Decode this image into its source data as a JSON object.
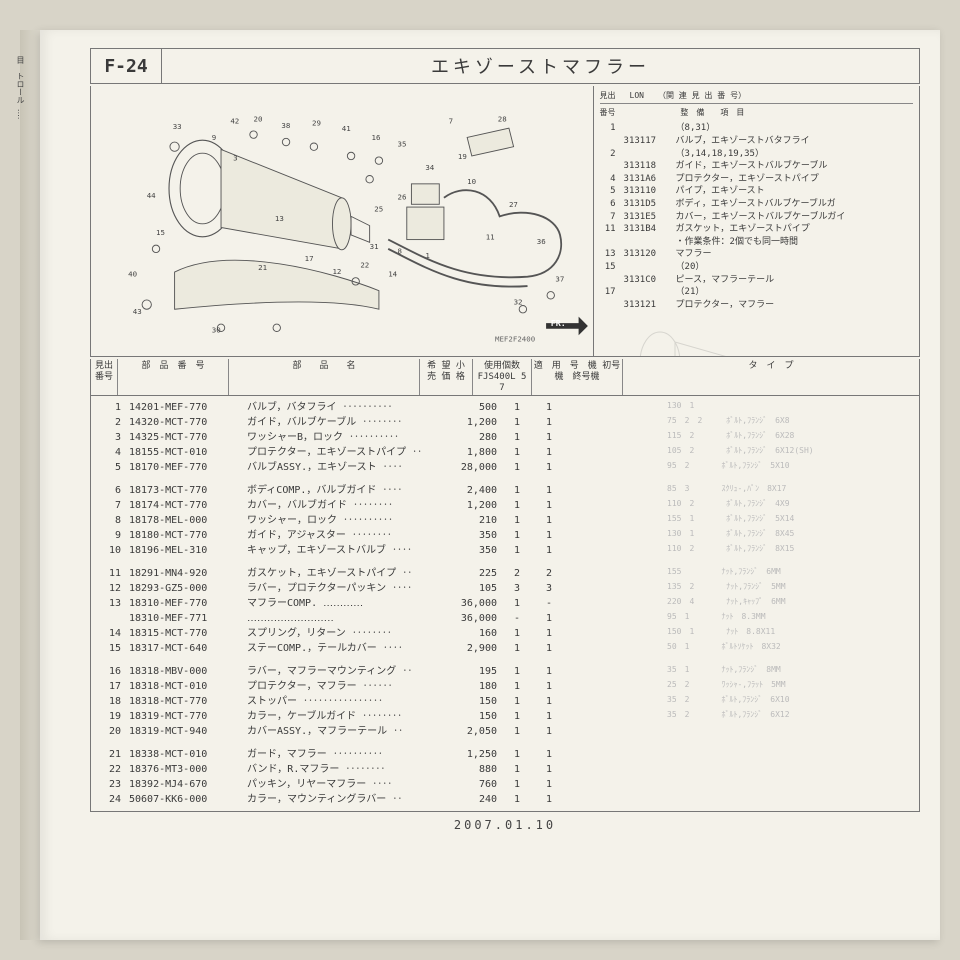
{
  "header": {
    "section": "F-24",
    "title": "エキゾーストマフラー"
  },
  "diagram": {
    "code": "MEF2F2400",
    "fr_label": "FR.",
    "callouts": [
      "1",
      "2",
      "3",
      "4",
      "5",
      "6",
      "7",
      "8",
      "9",
      "10",
      "11",
      "12",
      "13",
      "14",
      "15",
      "16",
      "17",
      "18",
      "19",
      "20",
      "21",
      "22",
      "23",
      "24",
      "25",
      "26",
      "27",
      "28",
      "29",
      "30",
      "31",
      "32",
      "33",
      "34",
      "35",
      "36",
      "37",
      "38",
      "39",
      "40",
      "41",
      "42",
      "43",
      "44"
    ]
  },
  "ref_header": {
    "c1": "見出",
    "c2": "番号",
    "c3": "LON",
    "c4": "（関 連 見 出 番 号）",
    "c5": "整　備　　項　目"
  },
  "refs": [
    {
      "num": "1",
      "lon": "",
      "desc": "（8,31）"
    },
    {
      "num": "",
      "lon": "313117",
      "desc": "バルブ，エキゾーストバタフライ"
    },
    {
      "num": "2",
      "lon": "",
      "desc": "（3,14,18,19,35）"
    },
    {
      "num": "",
      "lon": "313118",
      "desc": "ガイド，エキゾーストバルブケーブル"
    },
    {
      "num": "4",
      "lon": "3131A6",
      "desc": "プロテクター，エキゾーストパイプ"
    },
    {
      "num": "5",
      "lon": "313110",
      "desc": "パイプ，エキゾースト"
    },
    {
      "num": "6",
      "lon": "3131D5",
      "desc": "ボディ，エキゾーストバルブケーブルガ"
    },
    {
      "num": "7",
      "lon": "3131E5",
      "desc": "カバー，エキゾーストバルブケーブルガイ"
    },
    {
      "num": "11",
      "lon": "3131B4",
      "desc": "ガスケット，エキゾーストパイプ"
    },
    {
      "num": "",
      "lon": "",
      "desc": "・作業条件：2個でも同一時間"
    },
    {
      "num": "13",
      "lon": "313120",
      "desc": "マフラー"
    },
    {
      "num": "15",
      "lon": "",
      "desc": "（20）"
    },
    {
      "num": "",
      "lon": "3131C0",
      "desc": "ピース，マフラーテール"
    },
    {
      "num": "17",
      "lon": "",
      "desc": "（21）"
    },
    {
      "num": "",
      "lon": "313121",
      "desc": "プロテクター，マフラー"
    }
  ],
  "table_headers": {
    "num": "見出\n番号",
    "pn": "部　品　番　号",
    "name": "部　　品　　名",
    "price": "希 望\n小 売\n価 格",
    "qty": "使用個数\nFJS400L\n5　7",
    "app": "適　用　号　機\n初号機　終号機",
    "rest": "タ　イ　プ"
  },
  "parts": [
    {
      "gap": false,
      "n": "1",
      "pn": "14201-MEF-770",
      "name": "バルブ，バタフライ ‥‥‥‥‥",
      "price": "500",
      "q1": "1",
      "q2": "1"
    },
    {
      "gap": false,
      "n": "2",
      "pn": "14320-MCT-770",
      "name": "ガイド，バルブケーブル ‥‥‥‥",
      "price": "1,200",
      "q1": "1",
      "q2": "1"
    },
    {
      "gap": false,
      "n": "3",
      "pn": "14325-MCT-770",
      "name": "ワッシャーB，ロック ‥‥‥‥‥",
      "price": "280",
      "q1": "1",
      "q2": "1"
    },
    {
      "gap": false,
      "n": "4",
      "pn": "18155-MCT-010",
      "name": "プロテクター，エキゾーストパイプ ‥",
      "price": "1,800",
      "q1": "1",
      "q2": "1"
    },
    {
      "gap": false,
      "n": "5",
      "pn": "18170-MEF-770",
      "name": "バルブASSY.，エキゾースト ‥‥",
      "price": "28,000",
      "q1": "1",
      "q2": "1"
    },
    {
      "gap": true,
      "n": "6",
      "pn": "18173-MCT-770",
      "name": "ボディCOMP.，バルブガイド ‥‥",
      "price": "2,400",
      "q1": "1",
      "q2": "1"
    },
    {
      "gap": false,
      "n": "7",
      "pn": "18174-MCT-770",
      "name": "カバー，バルブガイド ‥‥‥‥",
      "price": "1,200",
      "q1": "1",
      "q2": "1"
    },
    {
      "gap": false,
      "n": "8",
      "pn": "18178-MEL-000",
      "name": "ワッシャー，ロック ‥‥‥‥‥",
      "price": "210",
      "q1": "1",
      "q2": "1"
    },
    {
      "gap": false,
      "n": "9",
      "pn": "18180-MCT-770",
      "name": "ガイド，アジャスター ‥‥‥‥",
      "price": "350",
      "q1": "1",
      "q2": "1"
    },
    {
      "gap": false,
      "n": "10",
      "pn": "18196-MEL-310",
      "name": "キャップ，エキゾーストバルブ ‥‥",
      "price": "350",
      "q1": "1",
      "q2": "1"
    },
    {
      "gap": true,
      "n": "11",
      "pn": "18291-MN4-920",
      "name": "ガスケット，エキゾーストパイプ ‥",
      "price": "225",
      "q1": "2",
      "q2": "2"
    },
    {
      "gap": false,
      "n": "12",
      "pn": "18293-GZ5-000",
      "name": "ラバー，プロテクターパッキン ‥‥",
      "price": "105",
      "q1": "3",
      "q2": "3"
    },
    {
      "gap": false,
      "n": "13",
      "pn": "18310-MEF-770",
      "name": "マフラーCOMP. ‥‥‥‥‥‥",
      "price": "36,000",
      "q1": "1",
      "q2": "-"
    },
    {
      "gap": false,
      "n": "",
      "pn": "18310-MEF-771",
      "name": "‥‥‥‥‥‥‥‥‥‥‥‥‥",
      "price": "36,000",
      "q1": "-",
      "q2": "1"
    },
    {
      "gap": false,
      "n": "14",
      "pn": "18315-MCT-770",
      "name": "スプリング，リターン ‥‥‥‥",
      "price": "160",
      "q1": "1",
      "q2": "1"
    },
    {
      "gap": false,
      "n": "15",
      "pn": "18317-MCT-640",
      "name": "ステーCOMP.，テールカバー ‥‥",
      "price": "2,900",
      "q1": "1",
      "q2": "1"
    },
    {
      "gap": true,
      "n": "16",
      "pn": "18318-MBV-000",
      "name": "ラバー，マフラーマウンティング ‥",
      "price": "195",
      "q1": "1",
      "q2": "1"
    },
    {
      "gap": false,
      "n": "17",
      "pn": "18318-MCT-010",
      "name": "プロテクター，マフラー ‥‥‥",
      "price": "180",
      "q1": "1",
      "q2": "1"
    },
    {
      "gap": false,
      "n": "18",
      "pn": "18318-MCT-770",
      "name": "ストッパー ‥‥‥‥‥‥‥‥",
      "price": "150",
      "q1": "1",
      "q2": "1"
    },
    {
      "gap": false,
      "n": "19",
      "pn": "18319-MCT-770",
      "name": "カラー，ケーブルガイド ‥‥‥‥",
      "price": "150",
      "q1": "1",
      "q2": "1"
    },
    {
      "gap": false,
      "n": "20",
      "pn": "18319-MCT-940",
      "name": "カバーASSY.，マフラーテール ‥",
      "price": "2,050",
      "q1": "1",
      "q2": "1"
    },
    {
      "gap": true,
      "n": "21",
      "pn": "18338-MCT-010",
      "name": "ガード，マフラー ‥‥‥‥‥",
      "price": "1,250",
      "q1": "1",
      "q2": "1"
    },
    {
      "gap": false,
      "n": "22",
      "pn": "18376-MT3-000",
      "name": "バンド，R.マフラー ‥‥‥‥",
      "price": "880",
      "q1": "1",
      "q2": "1"
    },
    {
      "gap": false,
      "n": "23",
      "pn": "18392-MJ4-670",
      "name": "パッキン，リヤーマフラー ‥‥",
      "price": "760",
      "q1": "1",
      "q2": "1"
    },
    {
      "gap": false,
      "n": "24",
      "pn": "50607-KK6-000",
      "name": "カラー，マウンティングラバー ‥",
      "price": "240",
      "q1": "1",
      "q2": "1"
    }
  ],
  "ghost_rows": [
    "130　1　　　　　　　　　　　　　　",
    "75　2　2　　　ﾎﾞﾙﾄ,ﾌﾗﾝｼﾞ　6X8",
    "115　2　　　　ﾎﾞﾙﾄ,ﾌﾗﾝｼﾞ　6X28",
    "105　2　　　　ﾎﾞﾙﾄ,ﾌﾗﾝｼﾞ　6X12(SH)",
    "95　2　　　　ﾎﾞﾙﾄ,ﾌﾗﾝｼﾞ　5X10",
    "85　3　　　　ｽｸﾘｭ-,ﾊﾟﾝ　8X17",
    "110　2　　　　ﾎﾞﾙﾄ,ﾌﾗﾝｼﾞ　4X9",
    "155　1　　　　ﾎﾞﾙﾄ,ﾌﾗﾝｼﾞ　5X14",
    "130　1　　　　ﾎﾞﾙﾄ,ﾌﾗﾝｼﾞ　8X45",
    "110　2　　　　ﾎﾞﾙﾄ,ﾌﾗﾝｼﾞ　8X15",
    "155　　　　　ﾅｯﾄ,ﾌﾗﾝｼﾞ　6MM",
    "135　2　　　　ﾅｯﾄ,ﾌﾗﾝｼﾞ　5MM",
    "220　4　　　　ﾅｯﾄ,ｷｬｯﾌﾟ　6MM",
    "95　1　　　　ﾅｯﾄ　8.3MM",
    "150　1　　　　ﾅｯﾄ　8.8X11",
    "50　1　　　　ﾎﾞﾙﾄｿｹｯﾄ　8X32",
    "35　1　　　　ﾅｯﾄ,ﾌﾗﾝｼﾞ　8MM",
    "25　2　　　　ﾜｯｼｬ-,ﾌﾗｯﾄ　5MM",
    "35　2　　　　ﾎﾞﾙﾄ,ﾌﾗﾝｼﾞ　6X10",
    "35　2　　　　ﾎﾞﾙﾄ,ﾌﾗﾝｼﾞ　6X12"
  ],
  "date": "2007.01.10"
}
